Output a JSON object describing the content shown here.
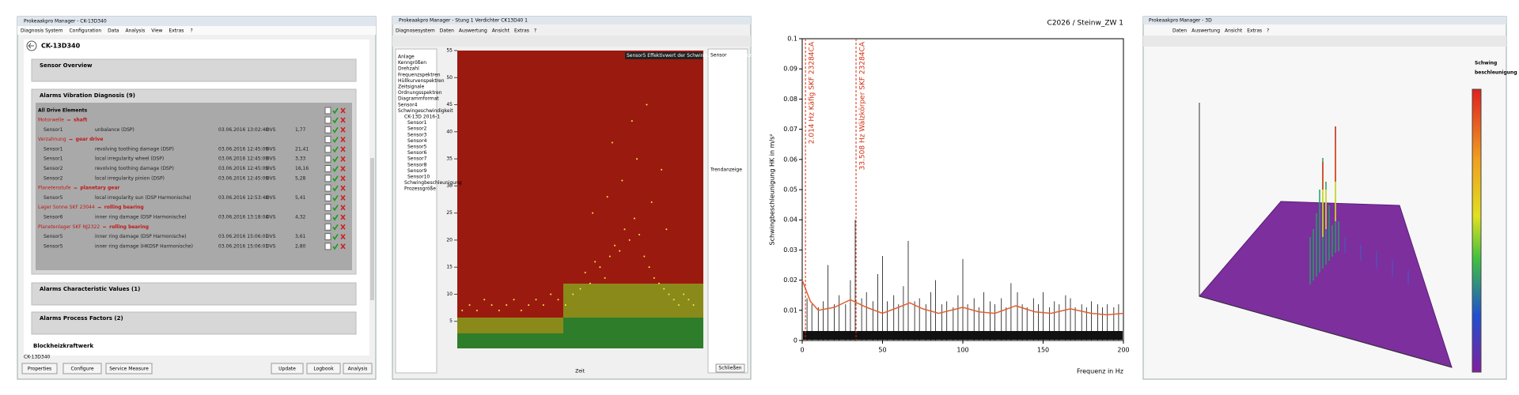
{
  "panel1": {
    "window_title": "Prokeaakpro Manager - CK-13D340",
    "menu": [
      "Diagnosis System",
      "Configuration",
      "Data",
      "Analysis",
      "View",
      "Extras",
      "?"
    ],
    "header": "CK-13D340",
    "sections": {
      "sensor_overview": "Sensor Overview",
      "alarms_vibration": "Alarms Vibration Diagnosis (9)",
      "alarms_characteristic": "Alarms Characteristic Values (1)",
      "alarms_process": "Alarms Process Factors (2)",
      "plant": "Blockheizkraftwerk"
    },
    "all_elements": "All Drive Elements",
    "groups": [
      {
        "name": "Motorwelle",
        "kind": "shaft",
        "rows": [
          [
            "Sensor1",
            "unbalance (DSP)",
            "03.06.2016 13:02:40",
            "DVS",
            "1,77"
          ]
        ]
      },
      {
        "name": "Verzahnung",
        "kind": "gear drive",
        "rows": [
          [
            "Sensor1",
            "revolving toothing damage (DSP)",
            "03.06.2016 12:45:09",
            "DVS",
            "21,41"
          ],
          [
            "Sensor1",
            "local irregularity wheel (DSP)",
            "03.06.2016 12:45:09",
            "DVS",
            "3,33"
          ],
          [
            "Sensor2",
            "revolving toothing damage (DSP)",
            "03.06.2016 12:45:09",
            "DVS",
            "16,16"
          ],
          [
            "Sensor2",
            "local irregularity pinion (DSP)",
            "03.06.2016 12:45:09",
            "DVS",
            "5,28"
          ]
        ]
      },
      {
        "name": "Planetenstufe",
        "kind": "planetary gear",
        "rows": [
          [
            "Sensor5",
            "local irregularity sun (DSP Harmonische)",
            "03.06.2016 12:53:48",
            "DVS",
            "5,41"
          ]
        ]
      },
      {
        "name": "Lager Sonne SKF 23044",
        "kind": "rolling bearing",
        "rows": [
          [
            "Sensor6",
            "inner ring damage (DSP Harmonische)",
            "03.06.2016 13:18:04",
            "DVS",
            "4,32"
          ]
        ]
      },
      {
        "name": "Planetenlager SKF NJ2322",
        "kind": "rolling bearing",
        "rows": [
          [
            "Sensor5",
            "inner ring damage (DSP Harmonische)",
            "03.06.2016 15:06:01",
            "DVS",
            "3,61"
          ],
          [
            "Sensor5",
            "inner ring damage (HKDSP Harmonische)",
            "03.06.2016 15:06:01",
            "DVS",
            "2,80"
          ]
        ]
      }
    ],
    "status": "CK-13D340",
    "buttons": [
      "Properties",
      "Configure",
      "Service Measure",
      "Update",
      "Logbook",
      "Analysis"
    ]
  },
  "panel2": {
    "window_title": "Prokeaakpro Manager - Stung 1 Verdichter CK13D40 1",
    "menu": [
      "Diagnosesystem",
      "Daten",
      "Auswertung",
      "Ansicht",
      "Extras",
      "?"
    ],
    "tree": [
      "Anlage",
      "Kenngrößen",
      "Drehzahl",
      "Frequenzspektren",
      "Hüllkurvenspektren",
      "Zeitsignale",
      "Ordnungsspektren",
      "Diagrammformat",
      "Sensor4",
      "Schwingeschwindigkeit",
      "CK-13D 2016-1",
      "Sensor1",
      "Sensor2",
      "Sensor3",
      "Sensor4",
      "Sensor5",
      "Sensor6",
      "Sensor7",
      "Sensor8",
      "Sensor9",
      "Sensor10",
      "Schwingbeschleunigung",
      "Prozessgröße"
    ],
    "legend": "Sensor5 Effektivwert der Schwingungsbeschleunigung",
    "right_title": "Sensor",
    "trend": "Trendanzeige",
    "close": "Schließen",
    "xlabel": "Zeit",
    "ylim": [
      0,
      55
    ],
    "yticks": [
      5,
      10,
      15,
      20,
      25,
      30,
      35,
      40,
      45,
      50,
      55
    ],
    "xlim": [
      0,
      100
    ],
    "points": {
      "x": [
        2,
        5,
        8,
        11,
        14,
        17,
        20,
        23,
        26,
        29,
        32,
        35,
        38,
        41,
        44,
        47,
        50,
        52,
        54,
        56,
        58,
        60,
        62,
        64,
        66,
        68,
        70,
        72,
        74,
        76,
        78,
        80,
        82,
        84,
        86,
        88,
        90,
        92,
        94,
        96,
        55,
        61,
        67,
        73,
        79,
        85,
        63,
        71,
        77,
        83
      ],
      "y": [
        7,
        8,
        7,
        9,
        8,
        7,
        8,
        9,
        7,
        8,
        9,
        8,
        10,
        9,
        8,
        10,
        11,
        14,
        12,
        16,
        15,
        13,
        17,
        19,
        18,
        22,
        20,
        24,
        21,
        17,
        15,
        13,
        12,
        11,
        10,
        9,
        8,
        10,
        9,
        8,
        25,
        28,
        31,
        35,
        27,
        22,
        38,
        42,
        45,
        33
      ]
    }
  },
  "panel3": {
    "title": "C2026 / Steinw_ZW 1",
    "ylabel": "Schwingbeschleunigung HK in m/s²",
    "xlabel": "Frequenz in Hz",
    "xlim": [
      0,
      200
    ],
    "ylim": [
      0,
      0.1
    ],
    "xticks": [
      0,
      50,
      100,
      150,
      200
    ],
    "yticks": [
      0,
      0.01,
      0.02,
      0.03,
      0.04,
      0.05,
      0.06,
      0.07,
      0.08,
      0.09,
      0.1
    ],
    "markers": [
      {
        "freq": 2.014,
        "label": "2.014 Hz Käfig SKF 23284CA"
      },
      {
        "freq": 33.508,
        "label": "33.508 Hz Wälzkörper SKF 23284CA"
      }
    ],
    "peaks": {
      "x": [
        3,
        6,
        10,
        13,
        16,
        20,
        23,
        27,
        30,
        33,
        37,
        40,
        44,
        47,
        50,
        53,
        57,
        60,
        63,
        66,
        70,
        73,
        77,
        80,
        83,
        87,
        90,
        94,
        97,
        100,
        103,
        107,
        110,
        113,
        117,
        120,
        124,
        127,
        130,
        134,
        137,
        140,
        144,
        147,
        150,
        154,
        157,
        160,
        164,
        167,
        170,
        174,
        177,
        180,
        184,
        187,
        190,
        194,
        197
      ],
      "y": [
        0.014,
        0.012,
        0.011,
        0.013,
        0.025,
        0.012,
        0.015,
        0.012,
        0.02,
        0.04,
        0.014,
        0.016,
        0.013,
        0.022,
        0.028,
        0.013,
        0.015,
        0.012,
        0.018,
        0.033,
        0.013,
        0.014,
        0.012,
        0.016,
        0.02,
        0.012,
        0.013,
        0.011,
        0.015,
        0.027,
        0.012,
        0.014,
        0.011,
        0.016,
        0.013,
        0.012,
        0.014,
        0.011,
        0.019,
        0.016,
        0.012,
        0.011,
        0.014,
        0.012,
        0.016,
        0.011,
        0.013,
        0.012,
        0.015,
        0.014,
        0.011,
        0.012,
        0.011,
        0.013,
        0.012,
        0.011,
        0.012,
        0.011,
        0.012
      ]
    },
    "envelope": {
      "x": [
        0,
        5,
        10,
        20,
        30,
        40,
        50,
        60,
        67,
        75,
        85,
        100,
        110,
        120,
        133,
        145,
        155,
        167,
        180,
        190,
        200
      ],
      "y": [
        0.02,
        0.013,
        0.01,
        0.011,
        0.0135,
        0.011,
        0.009,
        0.011,
        0.0125,
        0.0105,
        0.009,
        0.011,
        0.0095,
        0.009,
        0.0115,
        0.0095,
        0.009,
        0.0105,
        0.009,
        0.0085,
        0.009
      ]
    }
  },
  "panel4": {
    "window_title": "Prokeaakpro Manager - 3D",
    "menu": [
      "Daten",
      "Auswertung",
      "Ansicht",
      "Extras",
      "?"
    ],
    "colorbar_title": [
      "Schwing",
      "beschleunigung"
    ]
  }
}
